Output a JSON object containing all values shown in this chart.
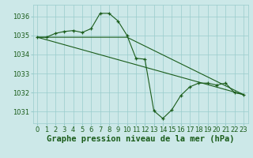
{
  "title": "Graphe pression niveau de la mer (hPa)",
  "bg_color": "#cce8e8",
  "grid_color": "#99cccc",
  "line_color": "#1a5c1a",
  "marker": "+",
  "ylim": [
    1030.4,
    1036.6
  ],
  "yticks": [
    1031,
    1032,
    1033,
    1034,
    1035,
    1036
  ],
  "xlim": [
    -0.5,
    23.5
  ],
  "xticks": [
    0,
    1,
    2,
    3,
    4,
    5,
    6,
    7,
    8,
    9,
    10,
    11,
    12,
    13,
    14,
    15,
    16,
    17,
    18,
    19,
    20,
    21,
    22,
    23
  ],
  "series1_x": [
    0,
    1,
    2,
    3,
    4,
    5,
    6,
    7,
    8,
    9,
    10,
    11,
    12,
    13,
    14,
    15,
    16,
    17,
    18,
    19,
    20,
    21,
    22,
    23
  ],
  "series1_y": [
    1034.9,
    1034.9,
    1035.1,
    1035.2,
    1035.25,
    1035.15,
    1035.35,
    1036.15,
    1036.15,
    1035.75,
    1035.0,
    1033.8,
    1033.75,
    1031.05,
    1030.65,
    1031.1,
    1031.85,
    1032.3,
    1032.5,
    1032.5,
    1032.4,
    1032.5,
    1032.0,
    1031.9
  ],
  "series2_x": [
    0,
    23
  ],
  "series2_y": [
    1034.9,
    1031.9
  ],
  "series3_x": [
    0,
    10,
    23
  ],
  "series3_y": [
    1034.9,
    1034.9,
    1031.9
  ],
  "title_fontsize": 7.5,
  "tick_fontsize": 6,
  "tick_color": "#1a5c1a",
  "axis_label_color": "#1a5c1a"
}
